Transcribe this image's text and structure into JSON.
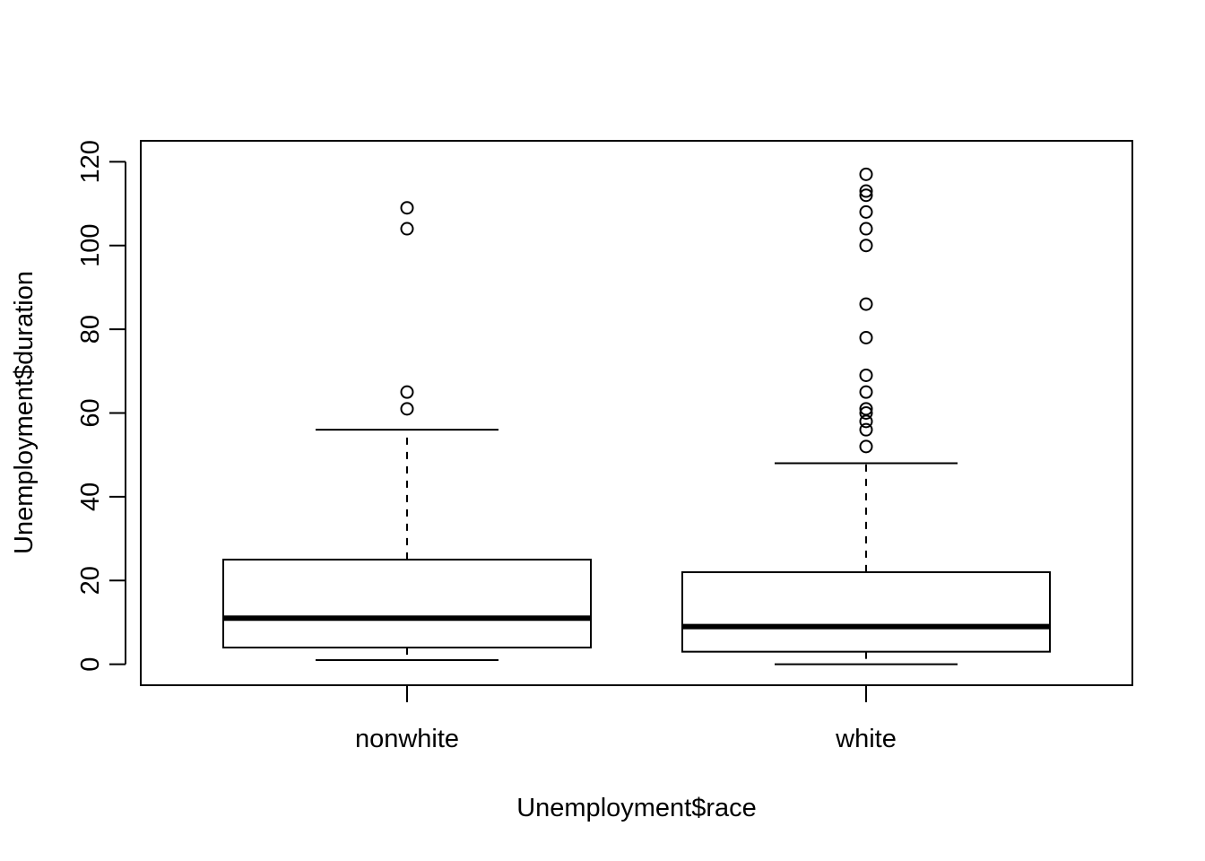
{
  "chart_data": {
    "type": "boxplot",
    "title": "",
    "xlabel": "Unemployment$race",
    "ylabel": "Unemployment$duration",
    "ylim": [
      -5,
      125
    ],
    "yticks": [
      "0",
      "20",
      "40",
      "60",
      "80",
      "100",
      "120"
    ],
    "categories": [
      "nonwhite",
      "white"
    ],
    "boxes": [
      {
        "category": "nonwhite",
        "whisker_low": 1,
        "q1": 4,
        "median": 11,
        "q3": 25,
        "whisker_high": 56,
        "outliers": [
          61,
          65,
          104,
          109
        ]
      },
      {
        "category": "white",
        "whisker_low": 0,
        "q1": 3,
        "median": 9,
        "q3": 22,
        "whisker_high": 48,
        "outliers": [
          52,
          56,
          58,
          60,
          61,
          65,
          69,
          78,
          86,
          100,
          104,
          108,
          112,
          113,
          117
        ]
      }
    ],
    "grid": false,
    "legend": "none"
  }
}
